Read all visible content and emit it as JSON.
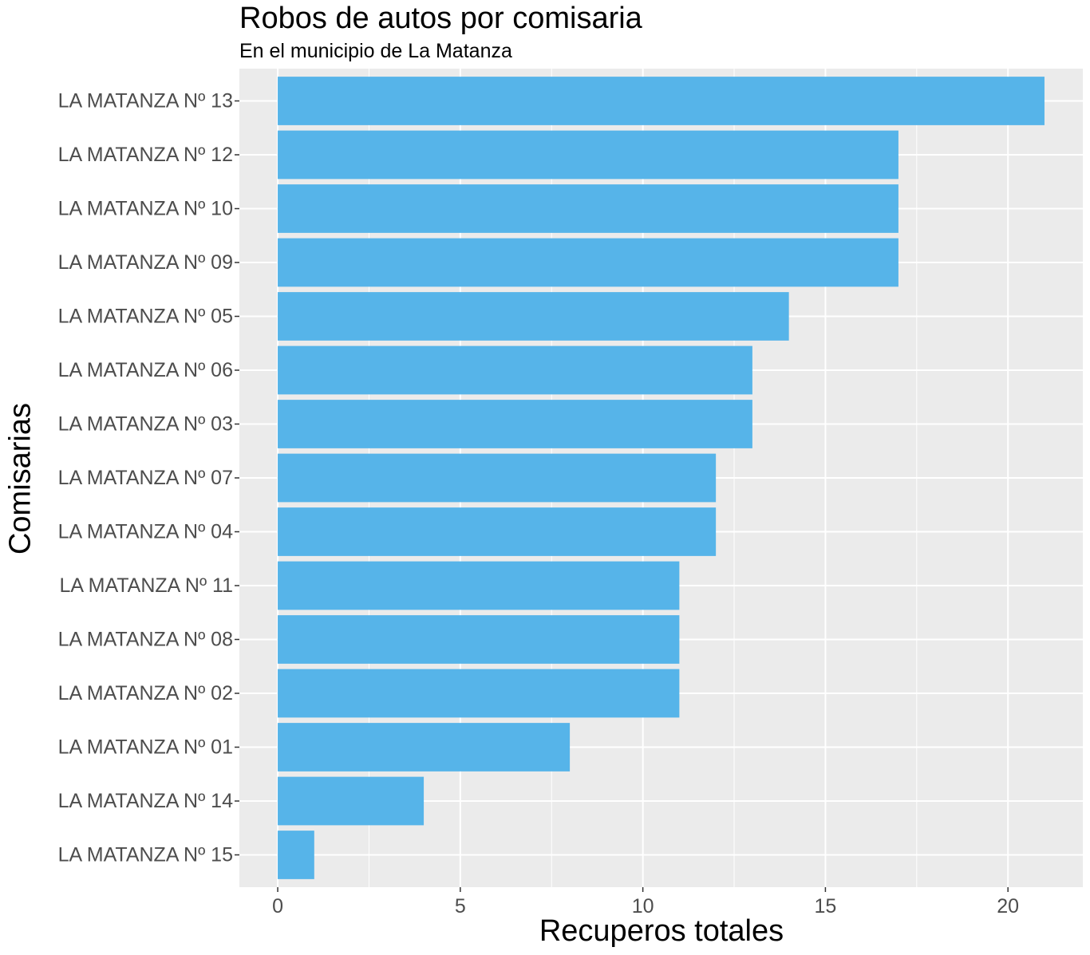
{
  "chart_data": {
    "type": "bar",
    "orientation": "horizontal",
    "title": "Robos de autos por comisaria",
    "subtitle": "En el municipio de La Matanza",
    "xlabel": "Recuperos totales",
    "ylabel": "Comisarias",
    "categories": [
      "LA MATANZA Nº 13",
      "LA MATANZA Nº 12",
      "LA MATANZA Nº 10",
      "LA MATANZA Nº 09",
      "LA MATANZA Nº 05",
      "LA MATANZA Nº 06",
      "LA MATANZA Nº 03",
      "LA MATANZA Nº 07",
      "LA MATANZA Nº 04",
      "LA MATANZA Nº 11",
      "LA MATANZA Nº 08",
      "LA MATANZA Nº 02",
      "LA MATANZA Nº 01",
      "LA MATANZA Nº 14",
      "LA MATANZA Nº 15"
    ],
    "values": [
      21,
      17,
      17,
      17,
      14,
      13,
      13,
      12,
      12,
      11,
      11,
      11,
      8,
      4,
      1
    ],
    "xlim": [
      -1.05,
      22.05
    ],
    "xticks": [
      0,
      5,
      10,
      15,
      20
    ],
    "grid": true,
    "colors": {
      "bar": "#56B4E9",
      "panel": "#EBEBEB",
      "grid": "#FFFFFF",
      "tick_text": "#4D4D4D",
      "tick_mark": "#333333"
    }
  }
}
